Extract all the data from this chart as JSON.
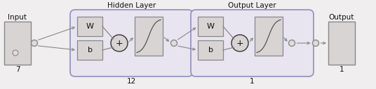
{
  "bg_color": "#f0eeee",
  "box_face": "#d8d4d4",
  "box_edge": "#888888",
  "round_box_face_hidden": "#e8e4f0",
  "round_box_face_output": "#e8e4f0",
  "round_box_edge": "#9090b8",
  "circle_face": "#e0dcdc",
  "circle_edge": "#888888",
  "sum_circle_face": "#d8d4d4",
  "sum_circle_edge": "#444444",
  "text_color": "#111111",
  "input_label": "Input",
  "input_num": "7",
  "output_label": "Output",
  "output_num": "1",
  "hidden_label": "Hidden Layer",
  "output_layer_label": "Output Layer",
  "hidden_num": "12",
  "output_layer_num": "1",
  "w_label": "W",
  "b_label": "b",
  "plus_label": "+",
  "figsize": [
    5.36,
    1.28
  ],
  "dpi": 100
}
